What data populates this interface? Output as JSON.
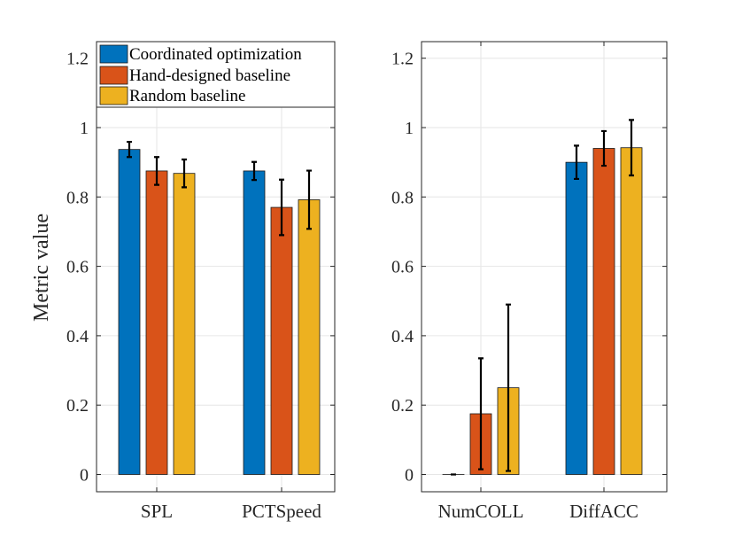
{
  "chart_data": {
    "type": "bar",
    "ylabel": "Metric value",
    "ylim": [
      0,
      1.25
    ],
    "yticks": [
      0,
      0.2,
      0.4,
      0.6,
      0.8,
      1,
      1.2
    ],
    "ytick_labels": [
      "0",
      "0.2",
      "0.4",
      "0.6",
      "0.8",
      "1",
      "1.2"
    ],
    "grid": true,
    "legend": {
      "placement": "top-left of left panel",
      "entries": [
        "Coordinated optimization",
        "Hand-designed baseline",
        "Random baseline"
      ]
    },
    "series_colors": [
      "#0072BD",
      "#D95319",
      "#EDB120"
    ],
    "panels": [
      {
        "categories": [
          "SPL",
          "PCTSpeed"
        ],
        "series": [
          {
            "name": "Coordinated optimization",
            "values": [
              0.937,
              0.875
            ],
            "errors": [
              0.022,
              0.026
            ]
          },
          {
            "name": "Hand-designed baseline",
            "values": [
              0.875,
              0.77
            ],
            "errors": [
              0.04,
              0.08
            ]
          },
          {
            "name": "Random baseline",
            "values": [
              0.868,
              0.792
            ],
            "errors": [
              0.04,
              0.084
            ]
          }
        ]
      },
      {
        "categories": [
          "NumCOLL",
          "DiffACC"
        ],
        "series": [
          {
            "name": "Coordinated optimization",
            "values": [
              0.0,
              0.9
            ],
            "errors": [
              0.0,
              0.048
            ]
          },
          {
            "name": "Hand-designed baseline",
            "values": [
              0.175,
              0.94
            ],
            "errors": [
              0.16,
              0.05
            ]
          },
          {
            "name": "Random baseline",
            "values": [
              0.25,
              0.942
            ],
            "errors": [
              0.24,
              0.08
            ]
          }
        ]
      }
    ]
  }
}
